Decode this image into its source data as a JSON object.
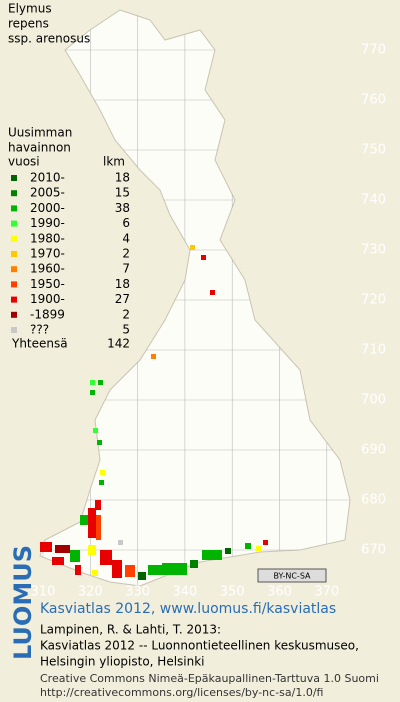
{
  "title": [
    "Elymus",
    "repens",
    "ssp. arenosus"
  ],
  "legend": {
    "header": [
      "Uusimman",
      "havainnon",
      "vuosi"
    ],
    "count_header": "lkm",
    "rows": [
      {
        "label": "2010-",
        "count": 18,
        "color": "#006400"
      },
      {
        "label": "2005-",
        "count": 15,
        "color": "#008000"
      },
      {
        "label": "2000-",
        "count": 38,
        "color": "#00b400"
      },
      {
        "label": "1990-",
        "count": 6,
        "color": "#32ff32"
      },
      {
        "label": "1980-",
        "count": 4,
        "color": "#ffff00"
      },
      {
        "label": "1970-",
        "count": 2,
        "color": "#ffc800"
      },
      {
        "label": "1960-",
        "count": 7,
        "color": "#ff8000"
      },
      {
        "label": "1950-",
        "count": 18,
        "color": "#ff4000"
      },
      {
        "label": "1900-",
        "count": 27,
        "color": "#e60000"
      },
      {
        "label": "-1899",
        "count": 2,
        "color": "#a00000"
      },
      {
        "label": "???",
        "count": 5,
        "color": "#c8c8c8"
      }
    ],
    "total_label": "Yhteensä",
    "total": 142
  },
  "grid": {
    "north": [
      770,
      760,
      750,
      740,
      730,
      720,
      710,
      700,
      690,
      680,
      670
    ],
    "east": [
      310,
      320,
      330,
      340,
      350,
      360,
      370
    ]
  },
  "license_badge": "BY-NC-SA",
  "logo": "LUOMUS",
  "footer": {
    "link": "Kasviatlas 2012, www.luomus.fi/kasviatlas",
    "lines": [
      "Lampinen, R. & Lahti, T. 2013:",
      "Kasviatlas 2012 -- Luonnontieteellinen keskusmuseo,",
      "Helsingin yliopisto, Helsinki"
    ],
    "license": [
      "Creative Commons Nimeä-Epäkaupallinen-Tarttuva 1.0 Suomi",
      "http://creativecommons.org/licenses/by-nc-sa/1.0/fi"
    ]
  }
}
